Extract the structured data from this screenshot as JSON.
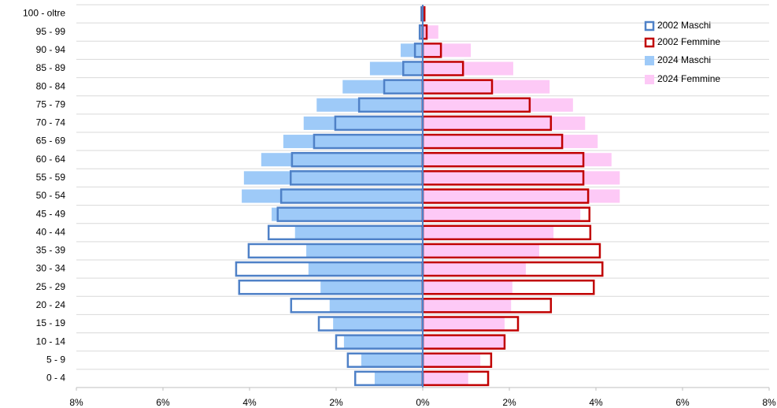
{
  "chart_data": {
    "type": "pyramid",
    "categories": [
      "100 - oltre",
      "95 - 99",
      "90 - 94",
      "85 - 89",
      "80 - 84",
      "75 - 79",
      "70 - 74",
      "65 - 69",
      "60 - 64",
      "55 - 59",
      "50 - 54",
      "45 - 49",
      "40 - 44",
      "35 - 39",
      "30 - 34",
      "25 - 29",
      "20 - 24",
      "15 - 19",
      "10 - 14",
      "5 - 9",
      "0 - 4"
    ],
    "series": [
      {
        "name": "2002 Maschi",
        "color": "#4f81c7",
        "style": "outline",
        "values": [
          -0.03,
          -0.07,
          -0.18,
          -0.45,
          -0.89,
          -1.47,
          -2.02,
          -2.51,
          -3.02,
          -3.05,
          -3.27,
          -3.35,
          -3.56,
          -4.02,
          -4.31,
          -4.24,
          -3.04,
          -2.4,
          -2,
          -1.73,
          -1.56
        ]
      },
      {
        "name": "2002 Femmine",
        "color": "#c00000",
        "style": "outline",
        "values": [
          0.04,
          0.09,
          0.42,
          0.93,
          1.6,
          2.47,
          2.96,
          3.22,
          3.71,
          3.71,
          3.82,
          3.85,
          3.87,
          4.09,
          4.15,
          3.95,
          2.96,
          2.2,
          1.89,
          1.58,
          1.51
        ]
      },
      {
        "name": "2024 Maschi",
        "color": "#9ecaf8",
        "style": "fill",
        "values": [
          -0.02,
          -0.07,
          -0.51,
          -1.22,
          -1.85,
          -2.45,
          -2.75,
          -3.22,
          -3.73,
          -4.13,
          -4.18,
          -3.49,
          -2.95,
          -2.69,
          -2.64,
          -2.36,
          -2.15,
          -2.07,
          -1.82,
          -1.42,
          -1.11
        ]
      },
      {
        "name": "2024 Femmine",
        "color": "#fdc9f6",
        "style": "fill",
        "values": [
          0.05,
          0.36,
          1.11,
          2.09,
          2.93,
          3.47,
          3.75,
          4.04,
          4.36,
          4.55,
          4.55,
          3.64,
          3.02,
          2.69,
          2.38,
          2.07,
          2.04,
          1.89,
          1.89,
          1.33,
          1.05
        ]
      }
    ],
    "xlim": [
      -8,
      8
    ],
    "xticks": [
      {
        "value": -8,
        "label": "8%"
      },
      {
        "value": -6,
        "label": "6%"
      },
      {
        "value": -4,
        "label": "4%"
      },
      {
        "value": -2,
        "label": "2%"
      },
      {
        "value": 0,
        "label": "0%"
      },
      {
        "value": 2,
        "label": "2%"
      },
      {
        "value": 4,
        "label": "4%"
      },
      {
        "value": 6,
        "label": "6%"
      },
      {
        "value": 8,
        "label": "8%"
      }
    ],
    "legend": "upper right"
  }
}
